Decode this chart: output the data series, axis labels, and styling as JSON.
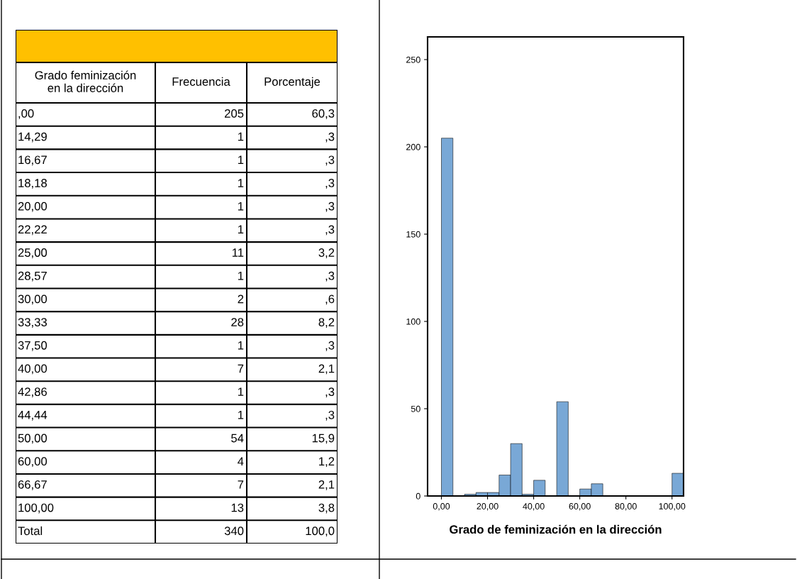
{
  "chart_data": [
    {
      "type": "other",
      "categories": [
        "Grado feminización\nen la dirección",
        "Frecuencia",
        "Porcentaje"
      ],
      "annotations": [
        ",00",
        "205",
        "60,3",
        "14,29",
        "1",
        ",3",
        "16,67",
        "1",
        ",3",
        "18,18",
        "1",
        ",3",
        "20,00",
        "1",
        ",3",
        "22,22",
        "1",
        ",3",
        "25,00",
        "11",
        "3,2",
        "28,57",
        "1",
        ",3",
        "30,00",
        "2",
        ",6",
        "33,33",
        "28",
        "8,2",
        "37,50",
        "1",
        ",3",
        "40,00",
        "7",
        "2,1",
        "42,86",
        "1",
        ",3",
        "44,44",
        "1",
        ",3",
        "50,00",
        "54",
        "15,9",
        "60,00",
        "4",
        "1,2",
        "66,67",
        "7",
        "2,1",
        "100,00",
        "13",
        "3,8",
        "Total",
        "340",
        "100,0"
      ]
    },
    {
      "type": "histogram",
      "xlabel": "Grado de feminización en la dirección",
      "color": "#79a8d6",
      "bins": [
        0,
        5,
        10,
        15,
        20,
        25,
        30,
        35,
        40,
        45,
        50,
        55,
        60,
        65,
        70,
        75,
        80,
        85,
        90,
        95,
        100,
        105
      ],
      "values": [
        205,
        0,
        1,
        2,
        2,
        12,
        30,
        1,
        9,
        0,
        54,
        0,
        4,
        7,
        0,
        0,
        0,
        0,
        0,
        0,
        13
      ],
      "xlim": [
        -6,
        105
      ],
      "xticks": [
        {
          "value": 0,
          "label": "0,00"
        },
        {
          "value": 20,
          "label": "20,00"
        },
        {
          "value": 40,
          "label": "40,00"
        },
        {
          "value": 60,
          "label": "60,00"
        },
        {
          "value": 80,
          "label": "80,00"
        },
        {
          "value": 100,
          "label": "100,00"
        }
      ],
      "ylim": [
        0,
        263
      ],
      "yticks": [
        0,
        50,
        100,
        150,
        200,
        250
      ],
      "grid": false
    }
  ]
}
